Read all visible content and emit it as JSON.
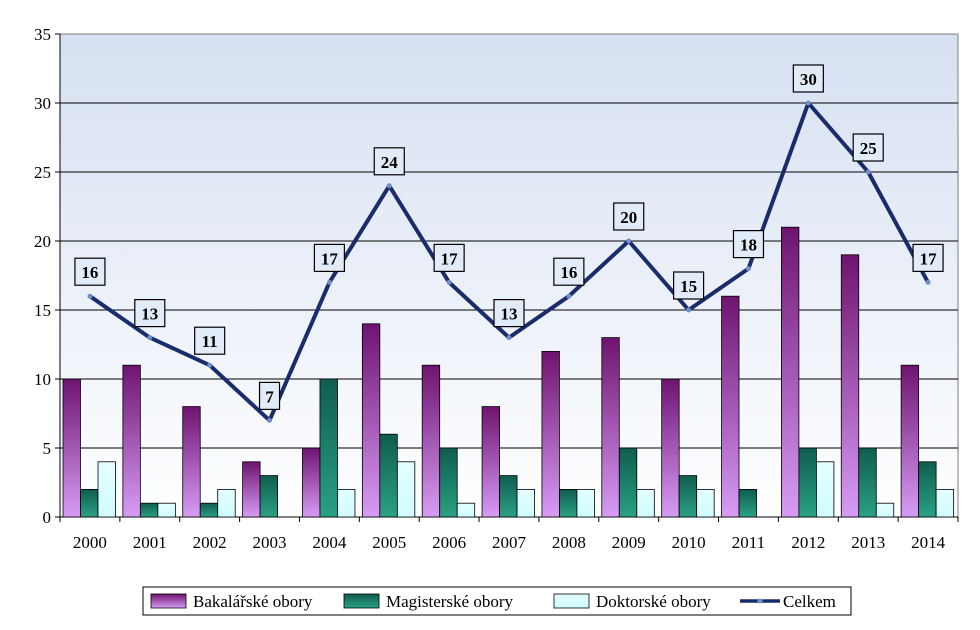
{
  "chart_data": {
    "type": "bar",
    "categories": [
      "2000",
      "2001",
      "2002",
      "2003",
      "2004",
      "2005",
      "2006",
      "2007",
      "2008",
      "2009",
      "2010",
      "2011",
      "2012",
      "2013",
      "2014"
    ],
    "series": [
      {
        "name": "Bakalářské obory",
        "type": "bar",
        "color": "#8b2a8b",
        "values": [
          10,
          11,
          8,
          4,
          5,
          14,
          11,
          8,
          12,
          13,
          10,
          16,
          21,
          19,
          11
        ]
      },
      {
        "name": "Magisterské obory",
        "type": "bar",
        "color": "#1a8a6a",
        "values": [
          2,
          1,
          1,
          3,
          10,
          6,
          5,
          3,
          2,
          5,
          3,
          2,
          5,
          5,
          4
        ]
      },
      {
        "name": "Doktorské obory",
        "type": "bar",
        "color": "#e4ffff",
        "values": [
          4,
          1,
          2,
          0,
          2,
          4,
          1,
          2,
          2,
          2,
          2,
          0,
          4,
          1,
          2
        ]
      },
      {
        "name": "Celkem",
        "type": "line",
        "color": "#1a2c6b",
        "values": [
          16,
          13,
          11,
          7,
          17,
          24,
          17,
          13,
          16,
          20,
          15,
          18,
          30,
          25,
          17
        ]
      }
    ],
    "ylim": [
      0,
      35
    ],
    "yticks": [
      0,
      5,
      10,
      15,
      20,
      25,
      30,
      35
    ],
    "grid": true,
    "legend": "bottom"
  }
}
